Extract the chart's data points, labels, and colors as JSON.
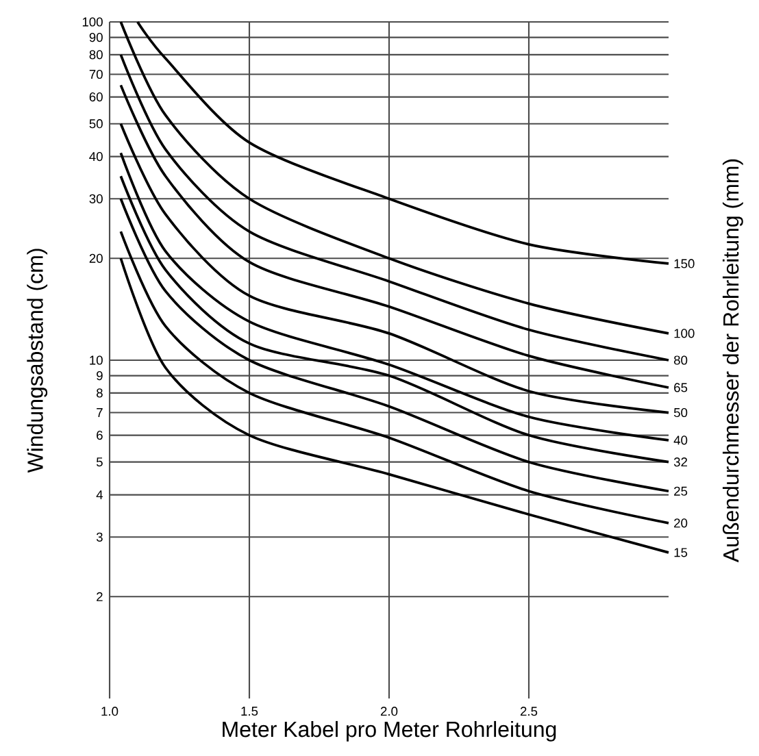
{
  "chart_data": {
    "type": "line",
    "xlabel": "Meter Kabel pro Meter Rohrleitung",
    "ylabel": "Windungsabstand (cm)",
    "y2label": "Außendurchmesser der Rohrleitung (mm)",
    "log": "y",
    "grid": true,
    "xlim": [
      1.0,
      3.0
    ],
    "ylim": [
      1,
      100
    ],
    "xticks": [
      {
        "value": 1.0,
        "label": "1.0"
      },
      {
        "value": 1.5,
        "label": "1.5"
      },
      {
        "value": 2.0,
        "label": "2.0"
      },
      {
        "value": 2.5,
        "label": "2.5"
      }
    ],
    "yticks": [
      2,
      3,
      4,
      5,
      6,
      7,
      8,
      9,
      10,
      20,
      30,
      40,
      50,
      60,
      70,
      80,
      90,
      100
    ],
    "series": [
      {
        "name": "150",
        "color": "#000000",
        "x": [
          1.1,
          1.2,
          1.5,
          2.0,
          2.5,
          3.0
        ],
        "values": [
          100,
          78,
          44,
          30,
          22,
          19.3
        ]
      },
      {
        "name": "100",
        "color": "#000000",
        "x": [
          1.04,
          1.2,
          1.5,
          2.0,
          2.5,
          3.0
        ],
        "values": [
          100,
          53,
          30,
          20,
          14.7,
          12
        ]
      },
      {
        "name": "80",
        "color": "#000000",
        "x": [
          1.04,
          1.2,
          1.5,
          2.0,
          2.5,
          3.0
        ],
        "values": [
          80,
          42,
          24,
          17.1,
          12.3,
          10
        ]
      },
      {
        "name": "65",
        "color": "#000000",
        "x": [
          1.04,
          1.2,
          1.5,
          2.0,
          2.5,
          3.0
        ],
        "values": [
          65,
          35,
          19.5,
          14.4,
          10.3,
          8.3
        ]
      },
      {
        "name": "50",
        "color": "#000000",
        "x": [
          1.04,
          1.2,
          1.5,
          2.0,
          2.5,
          3.0
        ],
        "values": [
          50,
          27,
          15.5,
          12,
          8.1,
          7
        ]
      },
      {
        "name": "40",
        "color": "#000000",
        "x": [
          1.04,
          1.2,
          1.5,
          2.0,
          2.5,
          3.0
        ],
        "values": [
          41,
          21,
          13,
          9.7,
          6.8,
          5.8
        ]
      },
      {
        "name": "32",
        "color": "#000000",
        "x": [
          1.04,
          1.2,
          1.5,
          2.0,
          2.5,
          3.0
        ],
        "values": [
          35,
          18.5,
          11.2,
          9,
          6,
          5
        ]
      },
      {
        "name": "25",
        "color": "#000000",
        "x": [
          1.04,
          1.2,
          1.5,
          2.0,
          2.5,
          3.0
        ],
        "values": [
          30,
          16,
          10,
          7.3,
          5,
          4.1
        ]
      },
      {
        "name": "20",
        "color": "#000000",
        "x": [
          1.04,
          1.2,
          1.5,
          2.0,
          2.5,
          3.0
        ],
        "values": [
          24,
          12.6,
          8,
          5.9,
          4.1,
          3.3
        ]
      },
      {
        "name": "15",
        "color": "#000000",
        "x": [
          1.04,
          1.2,
          1.5,
          2.0,
          2.5,
          3.0
        ],
        "values": [
          20,
          9.5,
          6,
          4.6,
          3.5,
          2.7
        ]
      }
    ]
  }
}
